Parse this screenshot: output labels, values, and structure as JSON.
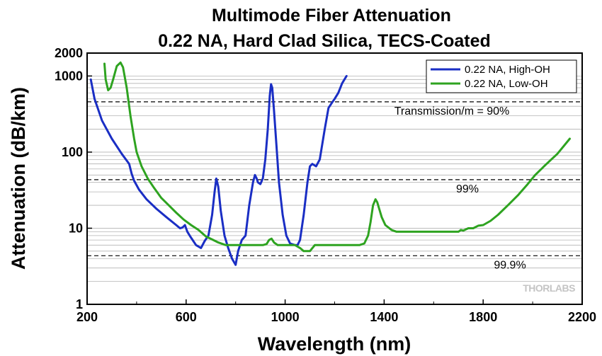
{
  "chart_data": {
    "type": "line",
    "title": "Multimode Fiber Attenuation",
    "subtitle": "0.22 NA,  Hard Clad Silica, TECS-Coated",
    "xlabel": "Wavelength (nm)",
    "ylabel": "Attenuation (dB/km)",
    "xlim": [
      200,
      2200
    ],
    "ylim": [
      1,
      2000
    ],
    "yscale": "log",
    "x_ticks": [
      200,
      600,
      1000,
      1400,
      1800,
      2200
    ],
    "x_tick_labels": [
      "200",
      "600",
      "1000",
      "1400",
      "1800",
      "2200"
    ],
    "y_ticks": [
      1,
      10,
      100,
      1000,
      2000
    ],
    "y_tick_labels": [
      "1",
      "10",
      "100",
      "1000",
      "2000"
    ],
    "grid": "horizontal minor log gridlines",
    "legend_position": "top-right",
    "series": [
      {
        "name": "0.22 NA, High-OH",
        "color": "#1a2ec4",
        "points": [
          [
            215,
            900
          ],
          [
            230,
            500
          ],
          [
            260,
            260
          ],
          [
            300,
            150
          ],
          [
            340,
            95
          ],
          [
            370,
            70
          ],
          [
            380,
            52
          ],
          [
            390,
            42
          ],
          [
            410,
            32
          ],
          [
            440,
            24
          ],
          [
            480,
            18
          ],
          [
            520,
            14
          ],
          [
            560,
            11
          ],
          [
            575,
            10
          ],
          [
            585,
            10.2
          ],
          [
            595,
            11
          ],
          [
            605,
            9
          ],
          [
            620,
            7.5
          ],
          [
            640,
            6
          ],
          [
            660,
            5.5
          ],
          [
            675,
            6.8
          ],
          [
            690,
            8
          ],
          [
            705,
            15
          ],
          [
            715,
            30
          ],
          [
            722,
            45
          ],
          [
            730,
            35
          ],
          [
            740,
            17
          ],
          [
            755,
            8
          ],
          [
            770,
            5.5
          ],
          [
            785,
            4
          ],
          [
            800,
            3.3
          ],
          [
            810,
            5
          ],
          [
            825,
            7
          ],
          [
            840,
            8
          ],
          [
            855,
            20
          ],
          [
            870,
            40
          ],
          [
            878,
            50
          ],
          [
            885,
            45
          ],
          [
            890,
            40
          ],
          [
            900,
            38
          ],
          [
            910,
            45
          ],
          [
            920,
            80
          ],
          [
            930,
            200
          ],
          [
            938,
            550
          ],
          [
            943,
            780
          ],
          [
            948,
            700
          ],
          [
            955,
            350
          ],
          [
            965,
            120
          ],
          [
            975,
            40
          ],
          [
            990,
            15
          ],
          [
            1005,
            8
          ],
          [
            1020,
            6.3
          ],
          [
            1040,
            6
          ],
          [
            1050,
            6
          ],
          [
            1060,
            7
          ],
          [
            1075,
            15
          ],
          [
            1090,
            40
          ],
          [
            1100,
            65
          ],
          [
            1110,
            70
          ],
          [
            1125,
            65
          ],
          [
            1140,
            80
          ],
          [
            1160,
            200
          ],
          [
            1175,
            380
          ],
          [
            1190,
            450
          ],
          [
            1200,
            500
          ],
          [
            1215,
            600
          ],
          [
            1230,
            800
          ],
          [
            1248,
            1000
          ]
        ]
      },
      {
        "name": "0.22 NA, Low-OH",
        "color": "#2ea320",
        "points": [
          [
            270,
            1450
          ],
          [
            275,
            900
          ],
          [
            285,
            650
          ],
          [
            295,
            700
          ],
          [
            305,
            900
          ],
          [
            320,
            1350
          ],
          [
            335,
            1500
          ],
          [
            345,
            1300
          ],
          [
            360,
            700
          ],
          [
            375,
            300
          ],
          [
            390,
            150
          ],
          [
            400,
            100
          ],
          [
            420,
            65
          ],
          [
            445,
            45
          ],
          [
            470,
            34
          ],
          [
            500,
            25
          ],
          [
            530,
            20
          ],
          [
            560,
            16
          ],
          [
            590,
            13
          ],
          [
            620,
            11
          ],
          [
            650,
            9.5
          ],
          [
            680,
            7.8
          ],
          [
            710,
            7
          ],
          [
            730,
            6.5
          ],
          [
            760,
            6
          ],
          [
            800,
            6
          ],
          [
            840,
            6
          ],
          [
            880,
            6
          ],
          [
            910,
            6
          ],
          [
            925,
            6.2
          ],
          [
            935,
            7
          ],
          [
            945,
            7.3
          ],
          [
            955,
            6.5
          ],
          [
            970,
            6
          ],
          [
            1000,
            6
          ],
          [
            1040,
            6
          ],
          [
            1060,
            5.5
          ],
          [
            1075,
            5
          ],
          [
            1100,
            5
          ],
          [
            1120,
            6
          ],
          [
            1200,
            6
          ],
          [
            1250,
            6
          ],
          [
            1300,
            6
          ],
          [
            1320,
            6.3
          ],
          [
            1335,
            8
          ],
          [
            1345,
            12
          ],
          [
            1355,
            20
          ],
          [
            1365,
            24
          ],
          [
            1372,
            22
          ],
          [
            1380,
            18
          ],
          [
            1390,
            14
          ],
          [
            1405,
            11
          ],
          [
            1430,
            9.5
          ],
          [
            1450,
            9
          ],
          [
            1500,
            9
          ],
          [
            1600,
            9
          ],
          [
            1700,
            9
          ],
          [
            1710,
            9.5
          ],
          [
            1720,
            9.3
          ],
          [
            1740,
            10
          ],
          [
            1760,
            10
          ],
          [
            1780,
            10.8
          ],
          [
            1800,
            11
          ],
          [
            1830,
            12.5
          ],
          [
            1860,
            15
          ],
          [
            1900,
            20
          ],
          [
            1940,
            27
          ],
          [
            1980,
            38
          ],
          [
            2010,
            50
          ],
          [
            2050,
            67
          ],
          [
            2100,
            95
          ],
          [
            2150,
            150
          ]
        ]
      }
    ],
    "reference_lines": [
      {
        "y": 458,
        "label": "Transmission/m = 90%"
      },
      {
        "y": 43.4,
        "label": "99%"
      },
      {
        "y": 4.35,
        "label": "99.9%"
      }
    ],
    "annotations": [
      "THORLABS"
    ]
  }
}
